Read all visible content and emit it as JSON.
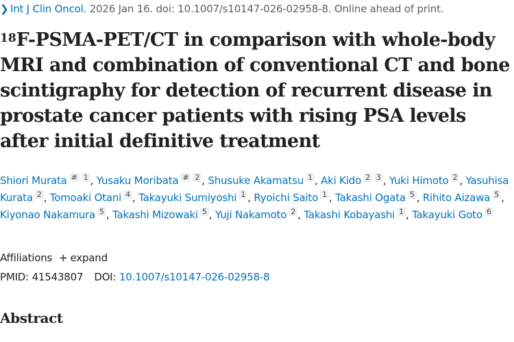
{
  "citation": {
    "chevron_icon": "chevron-right-icon",
    "journal": "Int J Clin Oncol.",
    "details": " 2026 Jan 16. doi: 10.1007/s10147-026-02958-8. Online ahead of print."
  },
  "title": {
    "superscript": "18",
    "text": "F-PSMA-PET/CT in comparison with whole-body MRI and combination of conventional CT and bone scintigraphy for detection of recurrent disease in prostate cancer patients with rising PSA levels after initial definitive treatment"
  },
  "authors": [
    {
      "name": "Shiori Murata",
      "marks": [
        "#",
        "1"
      ]
    },
    {
      "name": "Yusaku Moribata",
      "marks": [
        "#",
        "2"
      ]
    },
    {
      "name": "Shusuke Akamatsu",
      "marks": [
        "1"
      ]
    },
    {
      "name": "Aki Kido",
      "marks": [
        "2",
        "3"
      ]
    },
    {
      "name": "Yuki Himoto",
      "marks": [
        "2"
      ]
    },
    {
      "name": "Yasuhisa Kurata",
      "marks": [
        "2"
      ]
    },
    {
      "name": "Tomoaki Otani",
      "marks": [
        "4"
      ]
    },
    {
      "name": "Takayuki Sumiyoshi",
      "marks": [
        "1"
      ]
    },
    {
      "name": "Ryoichi Saito",
      "marks": [
        "1"
      ]
    },
    {
      "name": "Takashi Ogata",
      "marks": [
        "5"
      ]
    },
    {
      "name": "Rihito Aizawa",
      "marks": [
        "5"
      ]
    },
    {
      "name": "Kiyonao Nakamura",
      "marks": [
        "5"
      ]
    },
    {
      "name": "Takashi Mizowaki",
      "marks": [
        "5"
      ]
    },
    {
      "name": "Yuji Nakamoto",
      "marks": [
        "2"
      ]
    },
    {
      "name": "Takashi Kobayashi",
      "marks": [
        "1"
      ]
    },
    {
      "name": "Takayuki Goto",
      "marks": [
        "6"
      ]
    }
  ],
  "affiliations": {
    "label": "Affiliations",
    "expand_icon": "plus-icon",
    "expand_label": "expand"
  },
  "identifiers": {
    "pmid_label": "PMID:",
    "pmid": "41543807",
    "doi_label": "DOI:",
    "doi": "10.1007/s10147-026-02958-8"
  },
  "abstract": {
    "heading": "Abstract"
  },
  "colors": {
    "link": "#0071bc",
    "text": "#212121",
    "muted": "#5b616b",
    "badge_bg": "#eef0f2"
  }
}
